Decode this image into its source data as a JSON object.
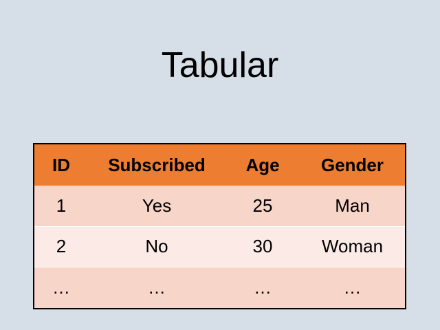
{
  "slide": {
    "title": "Tabular"
  },
  "table": {
    "headers": [
      "ID",
      "Subscribed",
      "Age",
      "Gender"
    ],
    "rows": [
      [
        "1",
        "Yes",
        "25",
        "Man"
      ],
      [
        "2",
        "No",
        "30",
        "Woman"
      ],
      [
        "…",
        "…",
        "…",
        "…"
      ]
    ]
  },
  "colors": {
    "background": "#d6dee8",
    "header": "#ed7d31",
    "row_odd": "#f8d5c9",
    "row_even": "#fbeae5"
  }
}
